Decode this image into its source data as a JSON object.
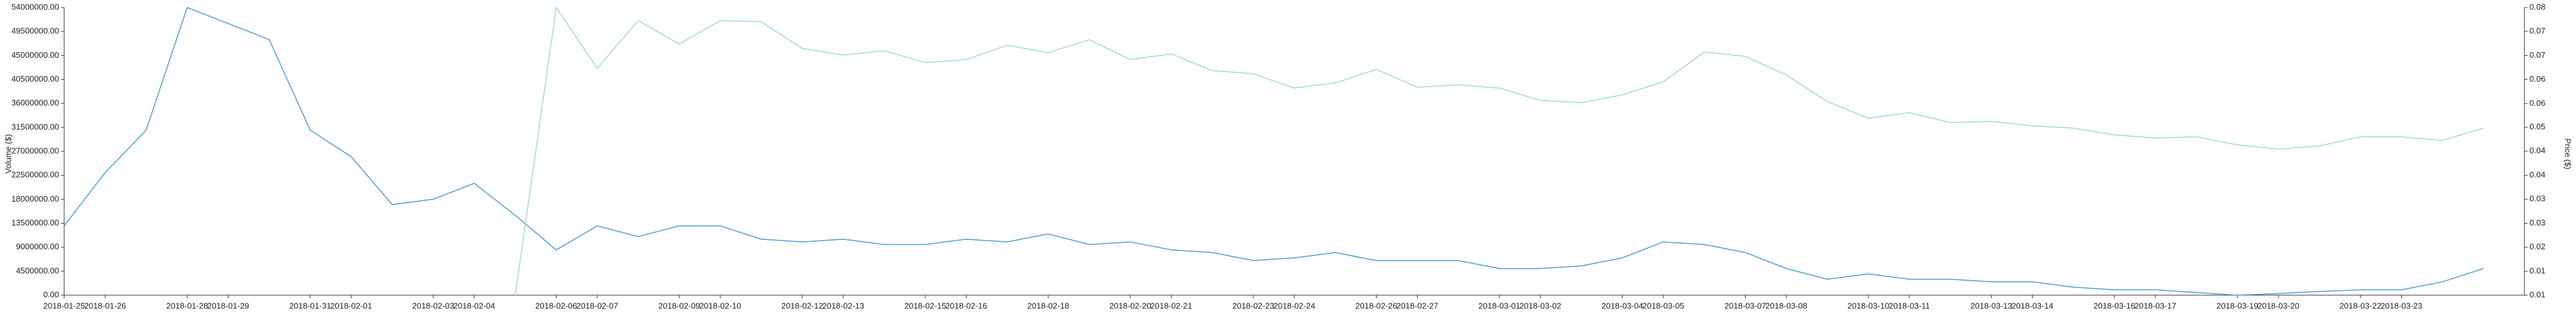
{
  "chart_data": {
    "type": "line",
    "y_label": "Volume ($)",
    "y2_label": "Price ($)",
    "categories": [
      "2018-01-25",
      "2018-01-26",
      null,
      "2018-01-28",
      "2018-01-29",
      null,
      "2018-01-31",
      "2018-02-01",
      null,
      "2018-02-03",
      "2018-02-04",
      null,
      "2018-02-06",
      "2018-02-07",
      null,
      "2018-02-09",
      "2018-02-10",
      null,
      "2018-02-12",
      "2018-02-13",
      null,
      "2018-02-15",
      "2018-02-16",
      null,
      "2018-02-18",
      null,
      "2018-02-20",
      "2018-02-21",
      null,
      "2018-02-23",
      "2018-02-24",
      null,
      "2018-02-26",
      "2018-02-27",
      null,
      "2018-03-01",
      "2018-03-02",
      null,
      "2018-03-04",
      "2018-03-05",
      null,
      "2018-03-07",
      "2018-03-08",
      null,
      "2018-03-10",
      "2018-03-11",
      null,
      "2018-03-13",
      "2018-03-14",
      null,
      "2018-03-16",
      "2018-03-17",
      null,
      "2018-03-19",
      "2018-03-20",
      null,
      "2018-03-22",
      "2018-03-23",
      null,
      null
    ],
    "series": [
      {
        "name": "Volume",
        "color": "#4a9cd6",
        "axis": "y",
        "values": [
          13000000,
          23000000,
          31000000,
          54000000,
          51000000,
          48000000,
          31000000,
          26000000,
          17000000,
          18000000,
          21000000,
          15000000,
          8500000,
          13000000,
          11000000,
          13000000,
          13000000,
          10500000,
          10000000,
          10500000,
          9500000,
          9500000,
          10500000,
          10000000,
          11500000,
          9500000,
          10000000,
          8500000,
          8000000,
          6500000,
          7000000,
          8000000,
          6500000,
          6500000,
          6500000,
          5000000,
          5000000,
          5500000,
          7000000,
          10000000,
          9500000,
          8000000,
          5000000,
          3000000,
          4000000,
          3000000,
          3000000,
          2500000,
          2500000,
          1500000,
          1000000,
          1000000,
          500000,
          0,
          300000,
          700000,
          1000000,
          1000000,
          2500000,
          5000000
        ]
      },
      {
        "name": "Price",
        "color": "#9ed6df",
        "axis": "y2",
        "values": [
          null,
          null,
          null,
          null,
          null,
          null,
          null,
          null,
          null,
          null,
          null,
          0.0075,
          0.08,
          0.0647,
          0.0767,
          0.0708,
          0.0767,
          0.0764,
          0.0697,
          0.068,
          0.0691,
          0.0661,
          0.0669,
          0.0705,
          0.0686,
          0.0719,
          0.0669,
          0.0683,
          0.0641,
          0.0633,
          0.0597,
          0.061,
          0.0644,
          0.0599,
          0.0605,
          0.0597,
          0.0566,
          0.056,
          0.058,
          0.0613,
          0.0688,
          0.0677,
          0.063,
          0.0563,
          0.0521,
          0.0535,
          0.051,
          0.0513,
          0.0502,
          0.0496,
          0.0479,
          0.0471,
          0.0474,
          0.0454,
          0.0443,
          0.0451,
          0.0474,
          0.0474,
          0.0465,
          0.0496
        ]
      }
    ],
    "ylim": [
      0,
      54000000
    ],
    "yticks": [
      {
        "value": 0,
        "label": "0.00"
      },
      {
        "value": 4500000,
        "label": "4500000.00"
      },
      {
        "value": 9000000,
        "label": "9000000.00"
      },
      {
        "value": 13500000,
        "label": "13500000.00"
      },
      {
        "value": 18000000,
        "label": "18000000.00"
      },
      {
        "value": 22500000,
        "label": "22500000.00"
      },
      {
        "value": 27000000,
        "label": "27000000.00"
      },
      {
        "value": 31500000,
        "label": "31500000.00"
      },
      {
        "value": 36000000,
        "label": "36000000.00"
      },
      {
        "value": 40500000,
        "label": "40500000.00"
      },
      {
        "value": 45000000,
        "label": "45000000.00"
      },
      {
        "value": 49500000,
        "label": "49500000.00"
      },
      {
        "value": 54000000,
        "label": "54000000.00"
      }
    ],
    "y2lim": [
      0.0075,
      0.08
    ],
    "y2ticks": [
      {
        "value": 0.0075,
        "label": "0.01"
      },
      {
        "value": 0.0135,
        "label": "0.01"
      },
      {
        "value": 0.0196,
        "label": "0.02"
      },
      {
        "value": 0.0256,
        "label": "0.03"
      },
      {
        "value": 0.0317,
        "label": "0.03"
      },
      {
        "value": 0.0377,
        "label": "0.04"
      },
      {
        "value": 0.0438,
        "label": "0.04"
      },
      {
        "value": 0.0498,
        "label": "0.05"
      },
      {
        "value": 0.0558,
        "label": "0.06"
      },
      {
        "value": 0.0619,
        "label": "0.06"
      },
      {
        "value": 0.0679,
        "label": "0.07"
      },
      {
        "value": 0.074,
        "label": "0.07"
      },
      {
        "value": 0.08,
        "label": "0.08"
      }
    ]
  }
}
